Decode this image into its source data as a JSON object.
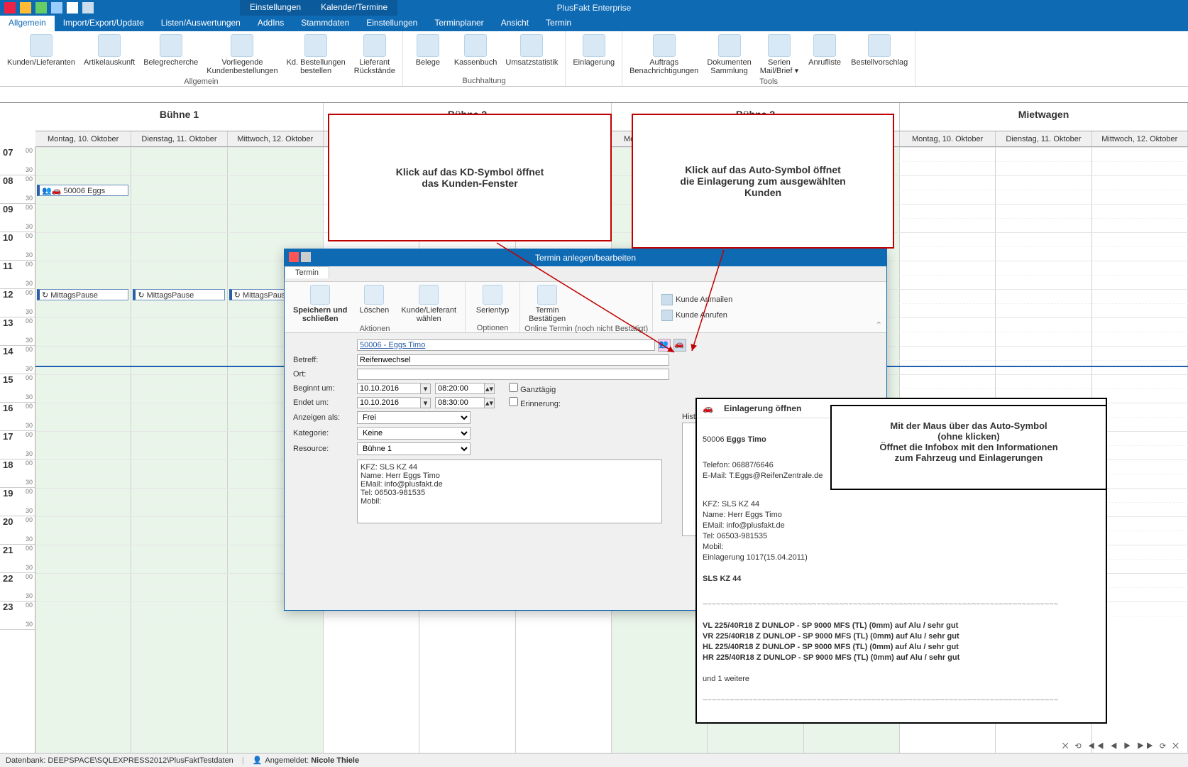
{
  "app": {
    "title": "PlusFakt Enterprise"
  },
  "ribbon_top_tabs": [
    "Einstellungen",
    "Kalender/Termine"
  ],
  "ribbon_main_tabs": [
    {
      "label": "Allgemein",
      "active": true
    },
    {
      "label": "Import/Export/Update"
    },
    {
      "label": "Listen/Auswertungen"
    },
    {
      "label": "AddIns"
    },
    {
      "label": "Stammdaten"
    },
    {
      "label": "Einstellungen"
    },
    {
      "label": "Terminplaner"
    },
    {
      "label": "Ansicht"
    },
    {
      "label": "Termin"
    }
  ],
  "ribbon_groups": [
    {
      "caption": "Allgemein",
      "buttons": [
        {
          "label": "Kunden/Lieferanten"
        },
        {
          "label": "Artikelauskunft"
        },
        {
          "label": "Belegrecherche"
        },
        {
          "label": "Vorliegende\nKundenbestellungen"
        },
        {
          "label": "Kd. Bestellungen\nbestellen"
        },
        {
          "label": "Lieferant\nRückstände"
        }
      ]
    },
    {
      "caption": "Buchhaltung",
      "buttons": [
        {
          "label": "Belege"
        },
        {
          "label": "Kassenbuch"
        },
        {
          "label": "Umsatzstatistik"
        }
      ]
    },
    {
      "caption": "",
      "buttons": [
        {
          "label": "Einlagerung"
        }
      ]
    },
    {
      "caption": "Tools",
      "buttons": [
        {
          "label": "Auftrags\nBenachrichtigungen"
        },
        {
          "label": "Dokumenten\nSammlung"
        },
        {
          "label": "Serien\nMail/Brief ▾"
        },
        {
          "label": "Anrufliste"
        },
        {
          "label": "Bestellvorschlag"
        }
      ]
    }
  ],
  "resources": [
    "Bühne 1",
    "Bühne 2",
    "Bühne 3",
    "Mietwagen"
  ],
  "days": [
    "Montag, 10. Oktober",
    "Dienstag, 11. Oktober",
    "Mittwoch, 12. Oktober"
  ],
  "hours": [
    "07",
    "08",
    "09",
    "10",
    "11",
    "12",
    "13",
    "14",
    "15",
    "16",
    "17",
    "18",
    "19",
    "20",
    "21",
    "22",
    "23"
  ],
  "appointments": {
    "eggs": "50006 Eggs",
    "pause": "MittagsPause"
  },
  "callout1": "Klick auf das KD-Symbol öffnet\ndas Kunden-Fenster",
  "callout2": "Klick auf das Auto-Symbol öffnet\ndie Einlagerung zum ausgewählten\nKunden",
  "callout3": "Mit der Maus über das Auto-Symbol\n(ohne klicken)\nÖffnet die Infobox mit den Informationen\nzum Fahrzeug und Einlagerungen",
  "dialog": {
    "title": "Termin anlegen/bearbeiten",
    "tab": "Termin",
    "groups": [
      {
        "caption": "Aktionen",
        "buttons": [
          {
            "label": "Speichern und\nschließen",
            "bold": true
          },
          {
            "label": "Löschen"
          },
          {
            "label": "Kunde/Lieferant\nwählen"
          }
        ]
      },
      {
        "caption": "Optionen",
        "buttons": [
          {
            "label": "Serientyp"
          }
        ]
      },
      {
        "caption": "Online Termin (noch nicht Bestätigt)",
        "buttons": [
          {
            "label": "Termin\nBestätigen"
          }
        ]
      }
    ],
    "side_buttons": [
      {
        "label": "Kunde Anmailen"
      },
      {
        "label": "Kunde Anrufen"
      }
    ],
    "kunde": "50006 - Eggs Timo",
    "labels": {
      "betreff": "Betreff:",
      "ort": "Ort:",
      "beginnt": "Beginnt um:",
      "endet": "Endet um:",
      "anzeigen": "Anzeigen als:",
      "kategorie": "Kategorie:",
      "resource": "Resource:",
      "historie": "Historie"
    },
    "values": {
      "betreff": "Reifenwechsel",
      "ort": "",
      "date1": "10.10.2016",
      "time1": "08:20:00",
      "date2": "10.10.2016",
      "time2": "08:30:00",
      "ganztag": "Ganztägig",
      "erinnerung": "Erinnerung:",
      "anzeigen": "Frei",
      "kategorie": "Keine",
      "resource": "Bühne 1"
    },
    "info": "KFZ: SLS KZ 44\nName: Herr Eggs Timo\nEMail: info@plusfakt.de\nTel: 06503-981535\nMobil:"
  },
  "tooltip": {
    "title": "Einlagerung öffnen",
    "name": "50006 Eggs Timo",
    "contact": "Telefon: 06887/6646\nE-Mail: T.Eggs@ReifenZentrale.de",
    "kfz": "KFZ: SLS KZ 44\nName: Herr Eggs Timo\nEMail: info@plusfakt.de\nTel: 06503-981535\nMobil:\nEinlagerung 1017(15.04.2011)",
    "plate": "SLS KZ 44",
    "tires": "VL  225/40R18 Z DUNLOP - SP 9000 MFS (TL) (0mm) auf Alu / sehr gut\nVR  225/40R18 Z DUNLOP - SP 9000 MFS (TL) (0mm) auf Alu / sehr gut\nHL  225/40R18 Z DUNLOP - SP 9000 MFS (TL) (0mm) auf Alu / sehr gut\nHR  225/40R18 Z DUNLOP - SP 9000 MFS (TL) (0mm) auf Alu / sehr gut",
    "more": "und 1 weitere"
  },
  "statusbar": {
    "db": "Datenbank: DEEPSPACE\\SQLEXPRESS2012\\PlusFaktTestdaten",
    "user_label": "Angemeldet:",
    "user": "Nicole Thiele"
  },
  "colors": {
    "primary": "#0f6ab4",
    "callout_border": "#c00000"
  }
}
